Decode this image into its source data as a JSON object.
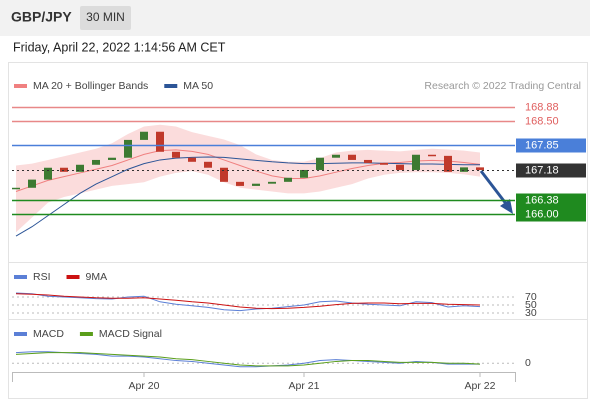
{
  "header": {
    "symbol": "GBP/JPY",
    "interval": "30 MIN",
    "timestamp": "Friday, April 22, 2022 1:14:56 AM CET"
  },
  "chart_data": [
    {
      "type": "candlestick",
      "credit": "Research © 2022 Trading Central",
      "categories": [
        null,
        null,
        null,
        null,
        null,
        null,
        null,
        null,
        "Apr 20",
        null,
        null,
        null,
        null,
        null,
        null,
        null,
        null,
        null,
        "Apr 21",
        null,
        null,
        null,
        null,
        null,
        null,
        null,
        null,
        null,
        null,
        "Apr 22"
      ],
      "close": [
        166.7,
        166.92,
        167.24,
        167.13,
        167.32,
        167.45,
        167.51,
        167.99,
        168.21,
        167.67,
        167.51,
        167.4,
        167.24,
        166.86,
        166.75,
        166.81,
        166.86,
        166.97,
        167.18,
        167.51,
        167.59,
        167.45,
        167.37,
        167.32,
        167.18,
        167.59,
        167.56,
        167.13,
        167.25,
        167.18
      ],
      "up_color": "#3d7a32",
      "down_color": "#c0392b",
      "series": [
        {
          "name": "MA 20 + Bollinger Bands",
          "color": "#f08080",
          "values": [
            166.6,
            166.75,
            166.9,
            167.0,
            167.1,
            167.2,
            167.3,
            167.45,
            167.6,
            167.7,
            167.72,
            167.68,
            167.6,
            167.45,
            167.3,
            167.15,
            167.02,
            166.95,
            166.95,
            167.02,
            167.12,
            167.22,
            167.3,
            167.36,
            167.38,
            167.42,
            167.44,
            167.42,
            167.38,
            167.33
          ],
          "upper": [
            167.3,
            167.35,
            167.45,
            167.55,
            167.65,
            167.75,
            167.9,
            168.15,
            168.35,
            168.4,
            168.35,
            168.2,
            168.1,
            168.0,
            167.85,
            167.6,
            167.45,
            167.4,
            167.4,
            167.5,
            167.65,
            167.7,
            167.72,
            167.7,
            167.68,
            167.72,
            167.75,
            167.73,
            167.7,
            167.65
          ],
          "lower": [
            165.5,
            165.9,
            166.3,
            166.45,
            166.55,
            166.65,
            166.75,
            166.8,
            166.85,
            167.0,
            167.1,
            167.15,
            167.05,
            166.85,
            166.7,
            166.65,
            166.6,
            166.55,
            166.55,
            166.6,
            166.7,
            166.8,
            166.95,
            167.05,
            167.1,
            167.12,
            167.12,
            167.1,
            167.06,
            167.0
          ]
        },
        {
          "name": "MA 50",
          "color": "#2c5597",
          "values": [
            165.4,
            165.65,
            165.95,
            166.25,
            166.55,
            166.8,
            167.0,
            167.2,
            167.35,
            167.45,
            167.5,
            167.52,
            167.53,
            167.52,
            167.48,
            167.44,
            167.4,
            167.37,
            167.35,
            167.35,
            167.36,
            167.37,
            167.37,
            167.36,
            167.35,
            167.34,
            167.34,
            167.33,
            167.32,
            167.32
          ]
        }
      ],
      "levels": [
        {
          "value": 168.88,
          "color": "#e06060",
          "box": false
        },
        {
          "value": 168.5,
          "label": "168.50",
          "color": "#e06060",
          "box": false
        },
        {
          "value": 167.85,
          "color": "#4a7fd9",
          "box": true
        },
        {
          "value": 167.18,
          "color": "#333333",
          "box": true,
          "dotted": true
        },
        {
          "value": 166.38,
          "color": "#1f8a1f",
          "box": true
        },
        {
          "value": 166,
          "label": "166.00",
          "color": "#1f8a1f",
          "box": true
        }
      ],
      "ylim": [
        164.7,
        169.2
      ]
    },
    {
      "type": "line",
      "series": [
        {
          "name": "RSI",
          "color": "#5b7fd6",
          "values": [
            80,
            78,
            72,
            70,
            68,
            66,
            65,
            70,
            72,
            58,
            52,
            48,
            44,
            38,
            36,
            40,
            42,
            46,
            50,
            58,
            60,
            55,
            52,
            50,
            48,
            58,
            56,
            45,
            48,
            46
          ]
        },
        {
          "name": "9MA",
          "color": "#cc1111",
          "values": [
            78,
            77,
            75,
            72,
            70,
            68,
            67,
            67,
            68,
            65,
            62,
            58,
            55,
            50,
            45,
            42,
            41,
            42,
            44,
            47,
            51,
            54,
            55,
            55,
            53,
            54,
            54,
            52,
            51,
            50
          ]
        }
      ],
      "ylim": [
        15,
        100
      ],
      "yticks": [
        70,
        50,
        30
      ]
    },
    {
      "type": "line",
      "series": [
        {
          "name": "MACD",
          "color": "#5b7fd6",
          "values": [
            0.12,
            0.13,
            0.13,
            0.12,
            0.11,
            0.1,
            0.08,
            0.08,
            0.07,
            0.05,
            0.03,
            0.02,
            0.0,
            -0.02,
            -0.04,
            -0.04,
            -0.03,
            -0.02,
            0.0,
            0.03,
            0.04,
            0.03,
            0.02,
            0.01,
            0.0,
            0.02,
            0.01,
            -0.01,
            -0.01,
            -0.01
          ]
        },
        {
          "name": "MACD Signal",
          "color": "#5a9e1a",
          "values": [
            0.1,
            0.11,
            0.12,
            0.12,
            0.12,
            0.11,
            0.1,
            0.09,
            0.08,
            0.07,
            0.05,
            0.04,
            0.02,
            0.0,
            -0.02,
            -0.03,
            -0.03,
            -0.03,
            -0.02,
            0.0,
            0.02,
            0.03,
            0.03,
            0.02,
            0.01,
            0.01,
            0.01,
            0.0,
            0.0,
            -0.01
          ]
        }
      ],
      "ylim": [
        -0.1,
        0.4
      ],
      "yticks": [
        0
      ]
    }
  ]
}
